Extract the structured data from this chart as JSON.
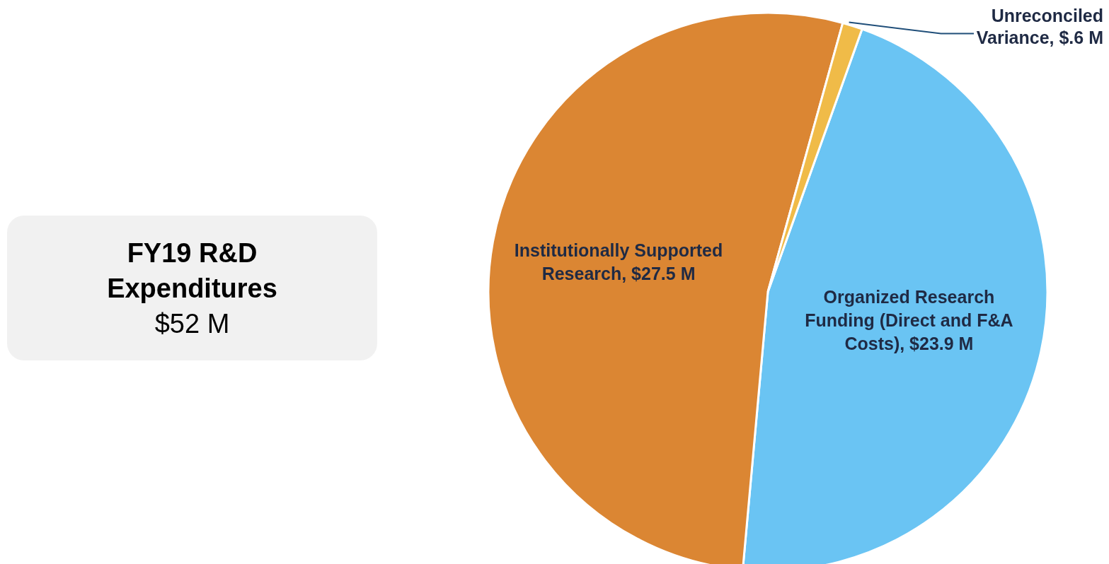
{
  "chart_data": {
    "type": "pie",
    "title": "FY19 R&D Expenditures",
    "subtitle": "$52 M",
    "categories": [
      "Organized Research Funding (Direct and F&A Costs)",
      "Institutionally Supported Research",
      "Unreconciled Variance"
    ],
    "values": [
      23.9,
      27.5,
      0.6
    ],
    "colors": [
      "#6ac4f3",
      "#db8633",
      "#f0bb48"
    ],
    "value_labels": [
      "$23.9 M",
      "$27.5 M",
      "$.6 M"
    ]
  }
}
